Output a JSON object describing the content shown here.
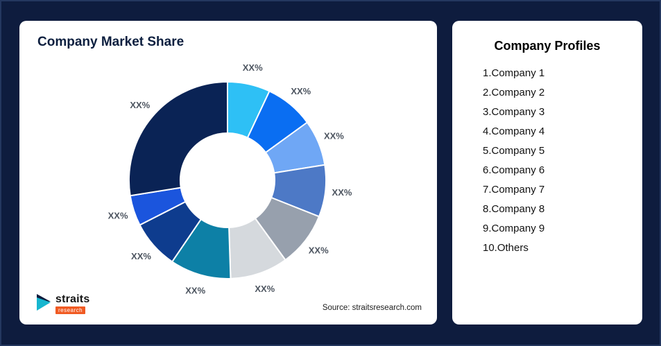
{
  "background_color": "#0e1c3e",
  "left_card": {
    "title": "Company Market Share",
    "source": "Source: straitsresearch.com",
    "logo": {
      "name": "straits",
      "sub": "research"
    }
  },
  "right_card": {
    "title": "Company Profiles",
    "items": [
      "1.Company 1",
      "2.Company 2",
      "3.Company 3",
      "4.Company 4",
      "5.Company 5",
      "6.Company 6",
      "7.Company 7",
      "8.Company 8",
      "9.Company 9",
      "10.Others"
    ]
  },
  "chart_data": {
    "type": "pie",
    "donut": true,
    "title": "Company Market Share",
    "start_angle_deg": 0,
    "direction": "clockwise",
    "inner_radius_ratio": 0.48,
    "gap_color": "#ffffff",
    "segments": [
      {
        "name": "Company 1",
        "label": "XX%",
        "value": 7,
        "color": "#2ec0f5"
      },
      {
        "name": "Company 2",
        "label": "XX%",
        "value": 8,
        "color": "#0a6ef2"
      },
      {
        "name": "Company 3",
        "label": "XX%",
        "value": 7.5,
        "color": "#6fa7f5"
      },
      {
        "name": "Company 4",
        "label": "XX%",
        "value": 8.5,
        "color": "#4d79c6"
      },
      {
        "name": "Company 5",
        "label": "XX%",
        "value": 9,
        "color": "#97a0ad"
      },
      {
        "name": "Company 6",
        "label": "XX%",
        "value": 9.5,
        "color": "#d5d9dd"
      },
      {
        "name": "Company 7",
        "label": "XX%",
        "value": 10,
        "color": "#0d80a6"
      },
      {
        "name": "Company 8",
        "label": "XX%",
        "value": 8,
        "color": "#0e3c8e"
      },
      {
        "name": "Company 9",
        "label": "XX%",
        "value": 5,
        "color": "#1b55dd"
      },
      {
        "name": "Others",
        "label": "XX%",
        "value": 27.5,
        "color": "#0a2355"
      }
    ]
  }
}
